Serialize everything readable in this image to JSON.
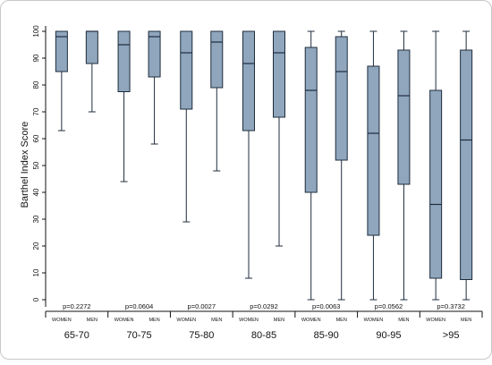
{
  "chart_data": {
    "type": "boxplot",
    "ylabel": "Barthel Index Score",
    "ylim": [
      0,
      100
    ],
    "yticks": [
      0,
      10,
      20,
      30,
      40,
      50,
      60,
      70,
      80,
      90,
      100
    ],
    "grid": false,
    "subgroups": [
      "WOMEN",
      "MEN"
    ],
    "groups": [
      {
        "label": "65-70",
        "p": "p=0.2272",
        "boxes": [
          {
            "name": "WOMEN",
            "min": 63,
            "q1": 85,
            "median": 98,
            "q3": 100,
            "max": 100
          },
          {
            "name": "MEN",
            "min": 70,
            "q1": 88,
            "median": 100,
            "q3": 100,
            "max": 100
          }
        ]
      },
      {
        "label": "70-75",
        "p": "p=0.0604",
        "boxes": [
          {
            "name": "WOMEN",
            "min": 44,
            "q1": 77.5,
            "median": 95,
            "q3": 100,
            "max": 100
          },
          {
            "name": "MEN",
            "min": 58,
            "q1": 83,
            "median": 98,
            "q3": 100,
            "max": 100
          }
        ]
      },
      {
        "label": "75-80",
        "p": "p=0.0027",
        "boxes": [
          {
            "name": "WOMEN",
            "min": 29,
            "q1": 71,
            "median": 92,
            "q3": 100,
            "max": 100
          },
          {
            "name": "MEN",
            "min": 48,
            "q1": 79,
            "median": 96,
            "q3": 100,
            "max": 100
          }
        ]
      },
      {
        "label": "80-85",
        "p": "p=0.0292",
        "boxes": [
          {
            "name": "WOMEN",
            "min": 8,
            "q1": 63,
            "median": 88,
            "q3": 100,
            "max": 100
          },
          {
            "name": "MEN",
            "min": 20,
            "q1": 68,
            "median": 92,
            "q3": 100,
            "max": 100
          }
        ]
      },
      {
        "label": "85-90",
        "p": "p=0.0063",
        "boxes": [
          {
            "name": "WOMEN",
            "min": 0,
            "q1": 40,
            "median": 78,
            "q3": 94,
            "max": 100
          },
          {
            "name": "MEN",
            "min": 0,
            "q1": 52,
            "median": 85,
            "q3": 98,
            "max": 100
          }
        ]
      },
      {
        "label": "90-95",
        "p": "p=0.0562",
        "boxes": [
          {
            "name": "WOMEN",
            "min": 0,
            "q1": 24,
            "median": 62,
            "q3": 87,
            "max": 100
          },
          {
            "name": "MEN",
            "min": 0,
            "q1": 43,
            "median": 76,
            "q3": 93,
            "max": 100
          }
        ]
      },
      {
        "label": ">95",
        "p": "p=0.3732",
        "boxes": [
          {
            "name": "WOMEN",
            "min": 0,
            "q1": 8,
            "median": 35.5,
            "q3": 78,
            "max": 100
          },
          {
            "name": "MEN",
            "min": 0,
            "q1": 7.5,
            "median": 59.5,
            "q3": 93,
            "max": 100
          }
        ]
      }
    ],
    "colors": {
      "box_fill": "#8fa6bd",
      "box_stroke": "#1f2c3c"
    }
  }
}
